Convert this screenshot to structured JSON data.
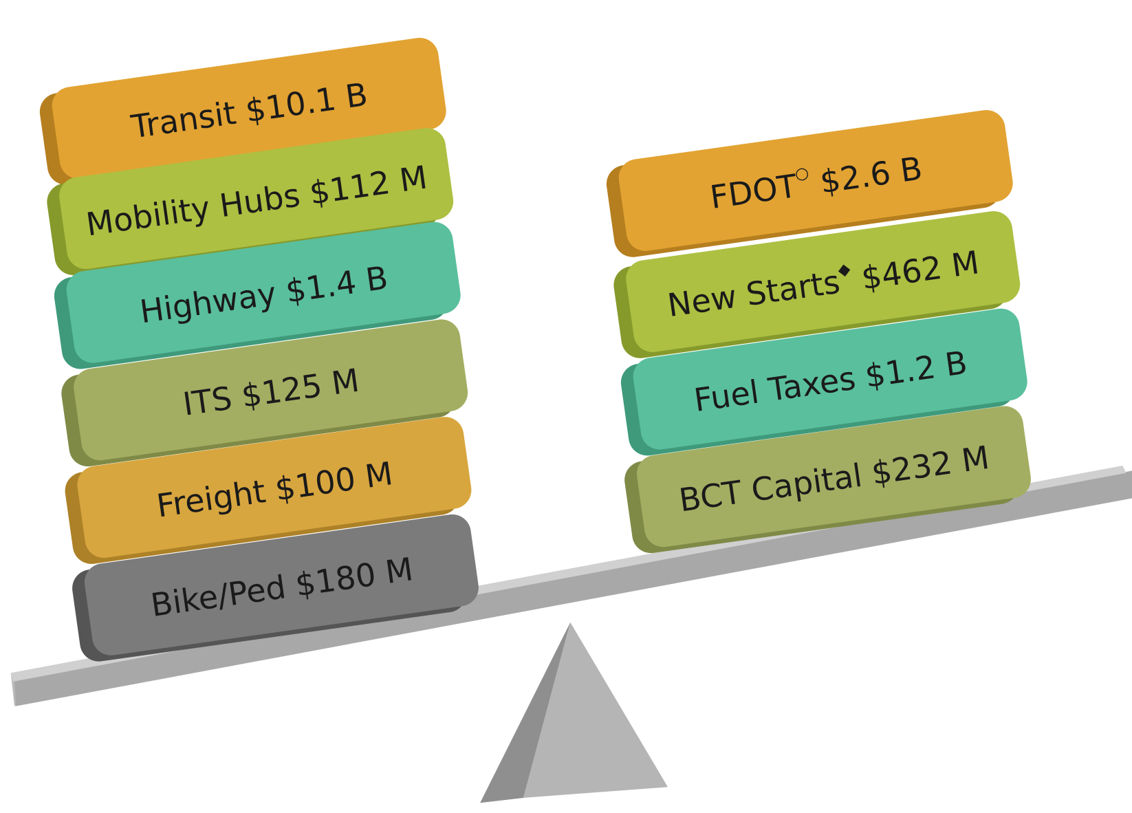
{
  "left_stack": [
    {
      "name": "Transit",
      "amount": "$10.1 B"
    },
    {
      "name": "Mobility Hubs",
      "amount": "$112 M"
    },
    {
      "name": "Highway",
      "amount": "$1.4 B"
    },
    {
      "name": "ITS",
      "amount": "$125 M"
    },
    {
      "name": "Freight",
      "amount": "$100 M"
    },
    {
      "name": "Bike/Ped",
      "amount": "$180 M"
    }
  ],
  "right_stack": [
    {
      "name": "FDOT",
      "symbol": "○",
      "amount": "$2.6 B"
    },
    {
      "name": "New Starts",
      "symbol": "◆",
      "amount": "$462 M"
    },
    {
      "name": "Fuel Taxes",
      "amount": "$1.2 B"
    },
    {
      "name": "BCT Capital",
      "amount": "$232 M"
    }
  ]
}
